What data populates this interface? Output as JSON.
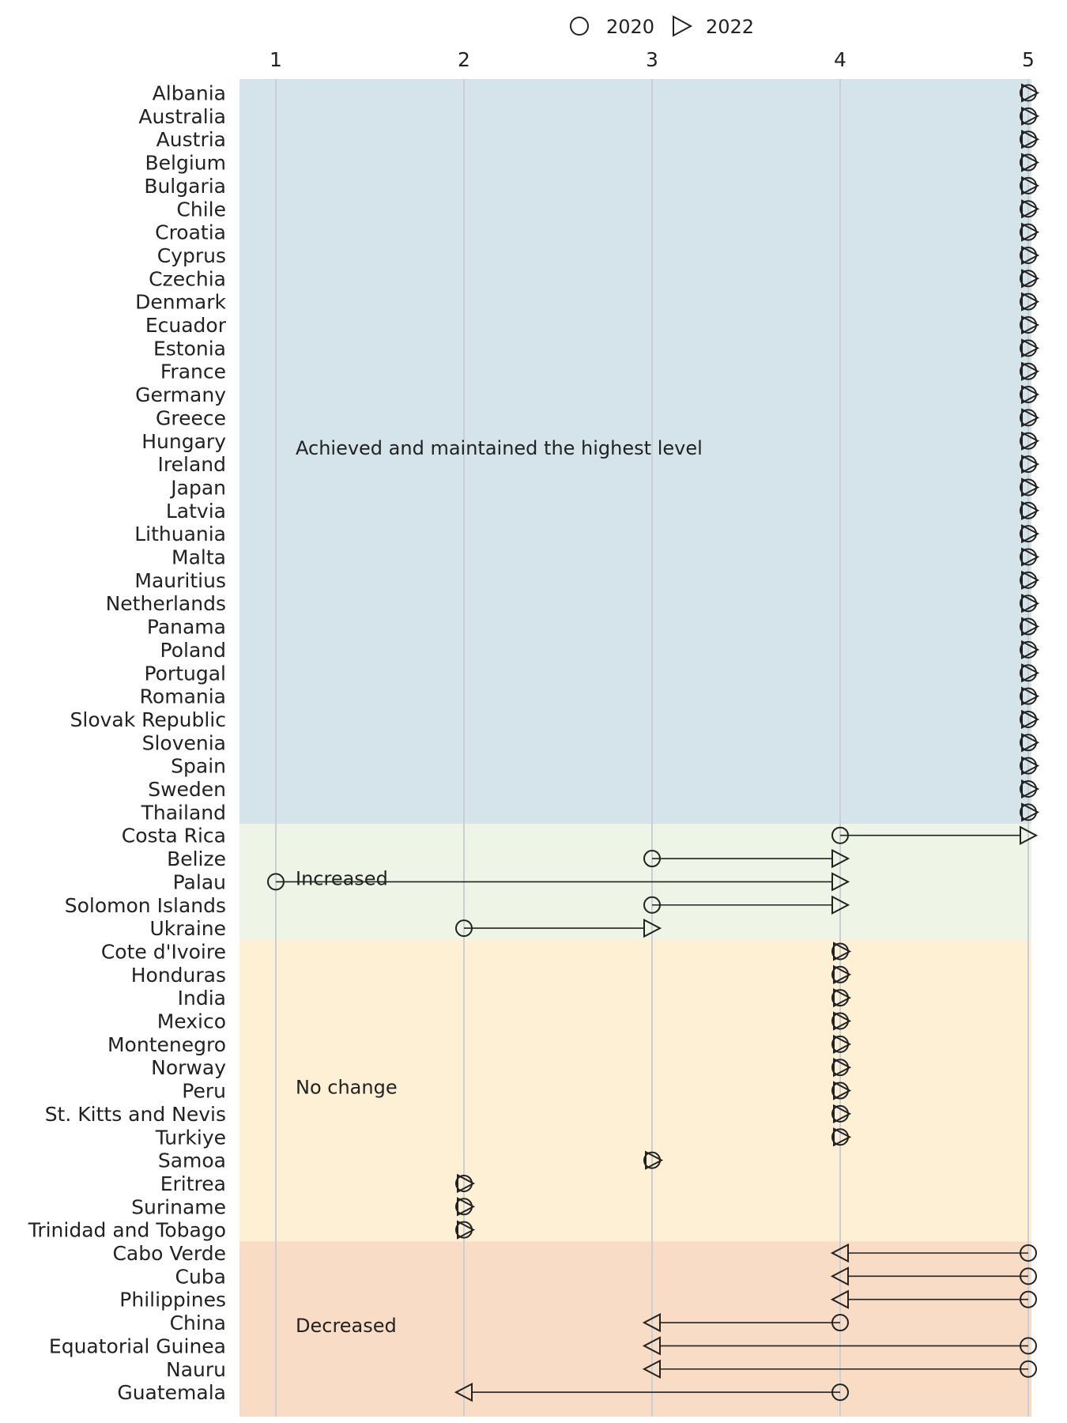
{
  "chart_data": {
    "type": "dumbbell",
    "x_ticks": [
      1,
      2,
      3,
      4,
      5
    ],
    "xlim": [
      1,
      5
    ],
    "legend": {
      "placement": "top",
      "items": [
        {
          "label": "2020",
          "marker": "circle"
        },
        {
          "label": "2022",
          "marker": "triangle"
        }
      ]
    },
    "groups": [
      {
        "label": "Achieved and maintained the highest level",
        "color": "#d5e4ea",
        "rows": [
          {
            "country": "Albania",
            "v2020": 5,
            "v2022": 5
          },
          {
            "country": "Australia",
            "v2020": 5,
            "v2022": 5
          },
          {
            "country": "Austria",
            "v2020": 5,
            "v2022": 5
          },
          {
            "country": "Belgium",
            "v2020": 5,
            "v2022": 5
          },
          {
            "country": "Bulgaria",
            "v2020": 5,
            "v2022": 5
          },
          {
            "country": "Chile",
            "v2020": 5,
            "v2022": 5
          },
          {
            "country": "Croatia",
            "v2020": 5,
            "v2022": 5
          },
          {
            "country": "Cyprus",
            "v2020": 5,
            "v2022": 5
          },
          {
            "country": "Czechia",
            "v2020": 5,
            "v2022": 5
          },
          {
            "country": "Denmark",
            "v2020": 5,
            "v2022": 5
          },
          {
            "country": "Ecuador",
            "v2020": 5,
            "v2022": 5
          },
          {
            "country": "Estonia",
            "v2020": 5,
            "v2022": 5
          },
          {
            "country": "France",
            "v2020": 5,
            "v2022": 5
          },
          {
            "country": "Germany",
            "v2020": 5,
            "v2022": 5
          },
          {
            "country": "Greece",
            "v2020": 5,
            "v2022": 5
          },
          {
            "country": "Hungary",
            "v2020": 5,
            "v2022": 5
          },
          {
            "country": "Ireland",
            "v2020": 5,
            "v2022": 5
          },
          {
            "country": "Japan",
            "v2020": 5,
            "v2022": 5
          },
          {
            "country": "Latvia",
            "v2020": 5,
            "v2022": 5
          },
          {
            "country": "Lithuania",
            "v2020": 5,
            "v2022": 5
          },
          {
            "country": "Malta",
            "v2020": 5,
            "v2022": 5
          },
          {
            "country": "Mauritius",
            "v2020": 5,
            "v2022": 5
          },
          {
            "country": "Netherlands",
            "v2020": 5,
            "v2022": 5
          },
          {
            "country": "Panama",
            "v2020": 5,
            "v2022": 5
          },
          {
            "country": "Poland",
            "v2020": 5,
            "v2022": 5
          },
          {
            "country": "Portugal",
            "v2020": 5,
            "v2022": 5
          },
          {
            "country": "Romania",
            "v2020": 5,
            "v2022": 5
          },
          {
            "country": "Slovak Republic",
            "v2020": 5,
            "v2022": 5
          },
          {
            "country": "Slovenia",
            "v2020": 5,
            "v2022": 5
          },
          {
            "country": "Spain",
            "v2020": 5,
            "v2022": 5
          },
          {
            "country": "Sweden",
            "v2020": 5,
            "v2022": 5
          },
          {
            "country": "Thailand",
            "v2020": 5,
            "v2022": 5
          }
        ]
      },
      {
        "label": "Increased",
        "color": "#eef4e6",
        "rows": [
          {
            "country": "Costa Rica",
            "v2020": 4,
            "v2022": 5
          },
          {
            "country": "Belize",
            "v2020": 3,
            "v2022": 4
          },
          {
            "country": "Palau",
            "v2020": 1,
            "v2022": 4
          },
          {
            "country": "Solomon Islands",
            "v2020": 3,
            "v2022": 4
          },
          {
            "country": "Ukraine",
            "v2020": 2,
            "v2022": 3
          }
        ]
      },
      {
        "label": "No change",
        "color": "#fdf0d5",
        "rows": [
          {
            "country": "Cote d'Ivoire",
            "v2020": 4,
            "v2022": 4
          },
          {
            "country": "Honduras",
            "v2020": 4,
            "v2022": 4
          },
          {
            "country": "India",
            "v2020": 4,
            "v2022": 4
          },
          {
            "country": "Mexico",
            "v2020": 4,
            "v2022": 4
          },
          {
            "country": "Montenegro",
            "v2020": 4,
            "v2022": 4
          },
          {
            "country": "Norway",
            "v2020": 4,
            "v2022": 4
          },
          {
            "country": "Peru",
            "v2020": 4,
            "v2022": 4
          },
          {
            "country": "St. Kitts and Nevis",
            "v2020": 4,
            "v2022": 4
          },
          {
            "country": "Turkiye",
            "v2020": 4,
            "v2022": 4
          },
          {
            "country": "Samoa",
            "v2020": 3,
            "v2022": 3
          },
          {
            "country": "Eritrea",
            "v2020": 2,
            "v2022": 2
          },
          {
            "country": "Suriname",
            "v2020": 2,
            "v2022": 2
          },
          {
            "country": "Trinidad and Tobago",
            "v2020": 2,
            "v2022": 2
          }
        ]
      },
      {
        "label": "Decreased",
        "color": "#f8dcc5",
        "rows": [
          {
            "country": "Cabo Verde",
            "v2020": 5,
            "v2022": 4
          },
          {
            "country": "Cuba",
            "v2020": 5,
            "v2022": 4
          },
          {
            "country": "Philippines",
            "v2020": 5,
            "v2022": 4
          },
          {
            "country": "China",
            "v2020": 4,
            "v2022": 3
          },
          {
            "country": "Equatorial Guinea",
            "v2020": 5,
            "v2022": 3
          },
          {
            "country": "Nauru",
            "v2020": 5,
            "v2022": 3
          },
          {
            "country": "Guatemala",
            "v2020": 4,
            "v2022": 2
          }
        ]
      }
    ]
  }
}
